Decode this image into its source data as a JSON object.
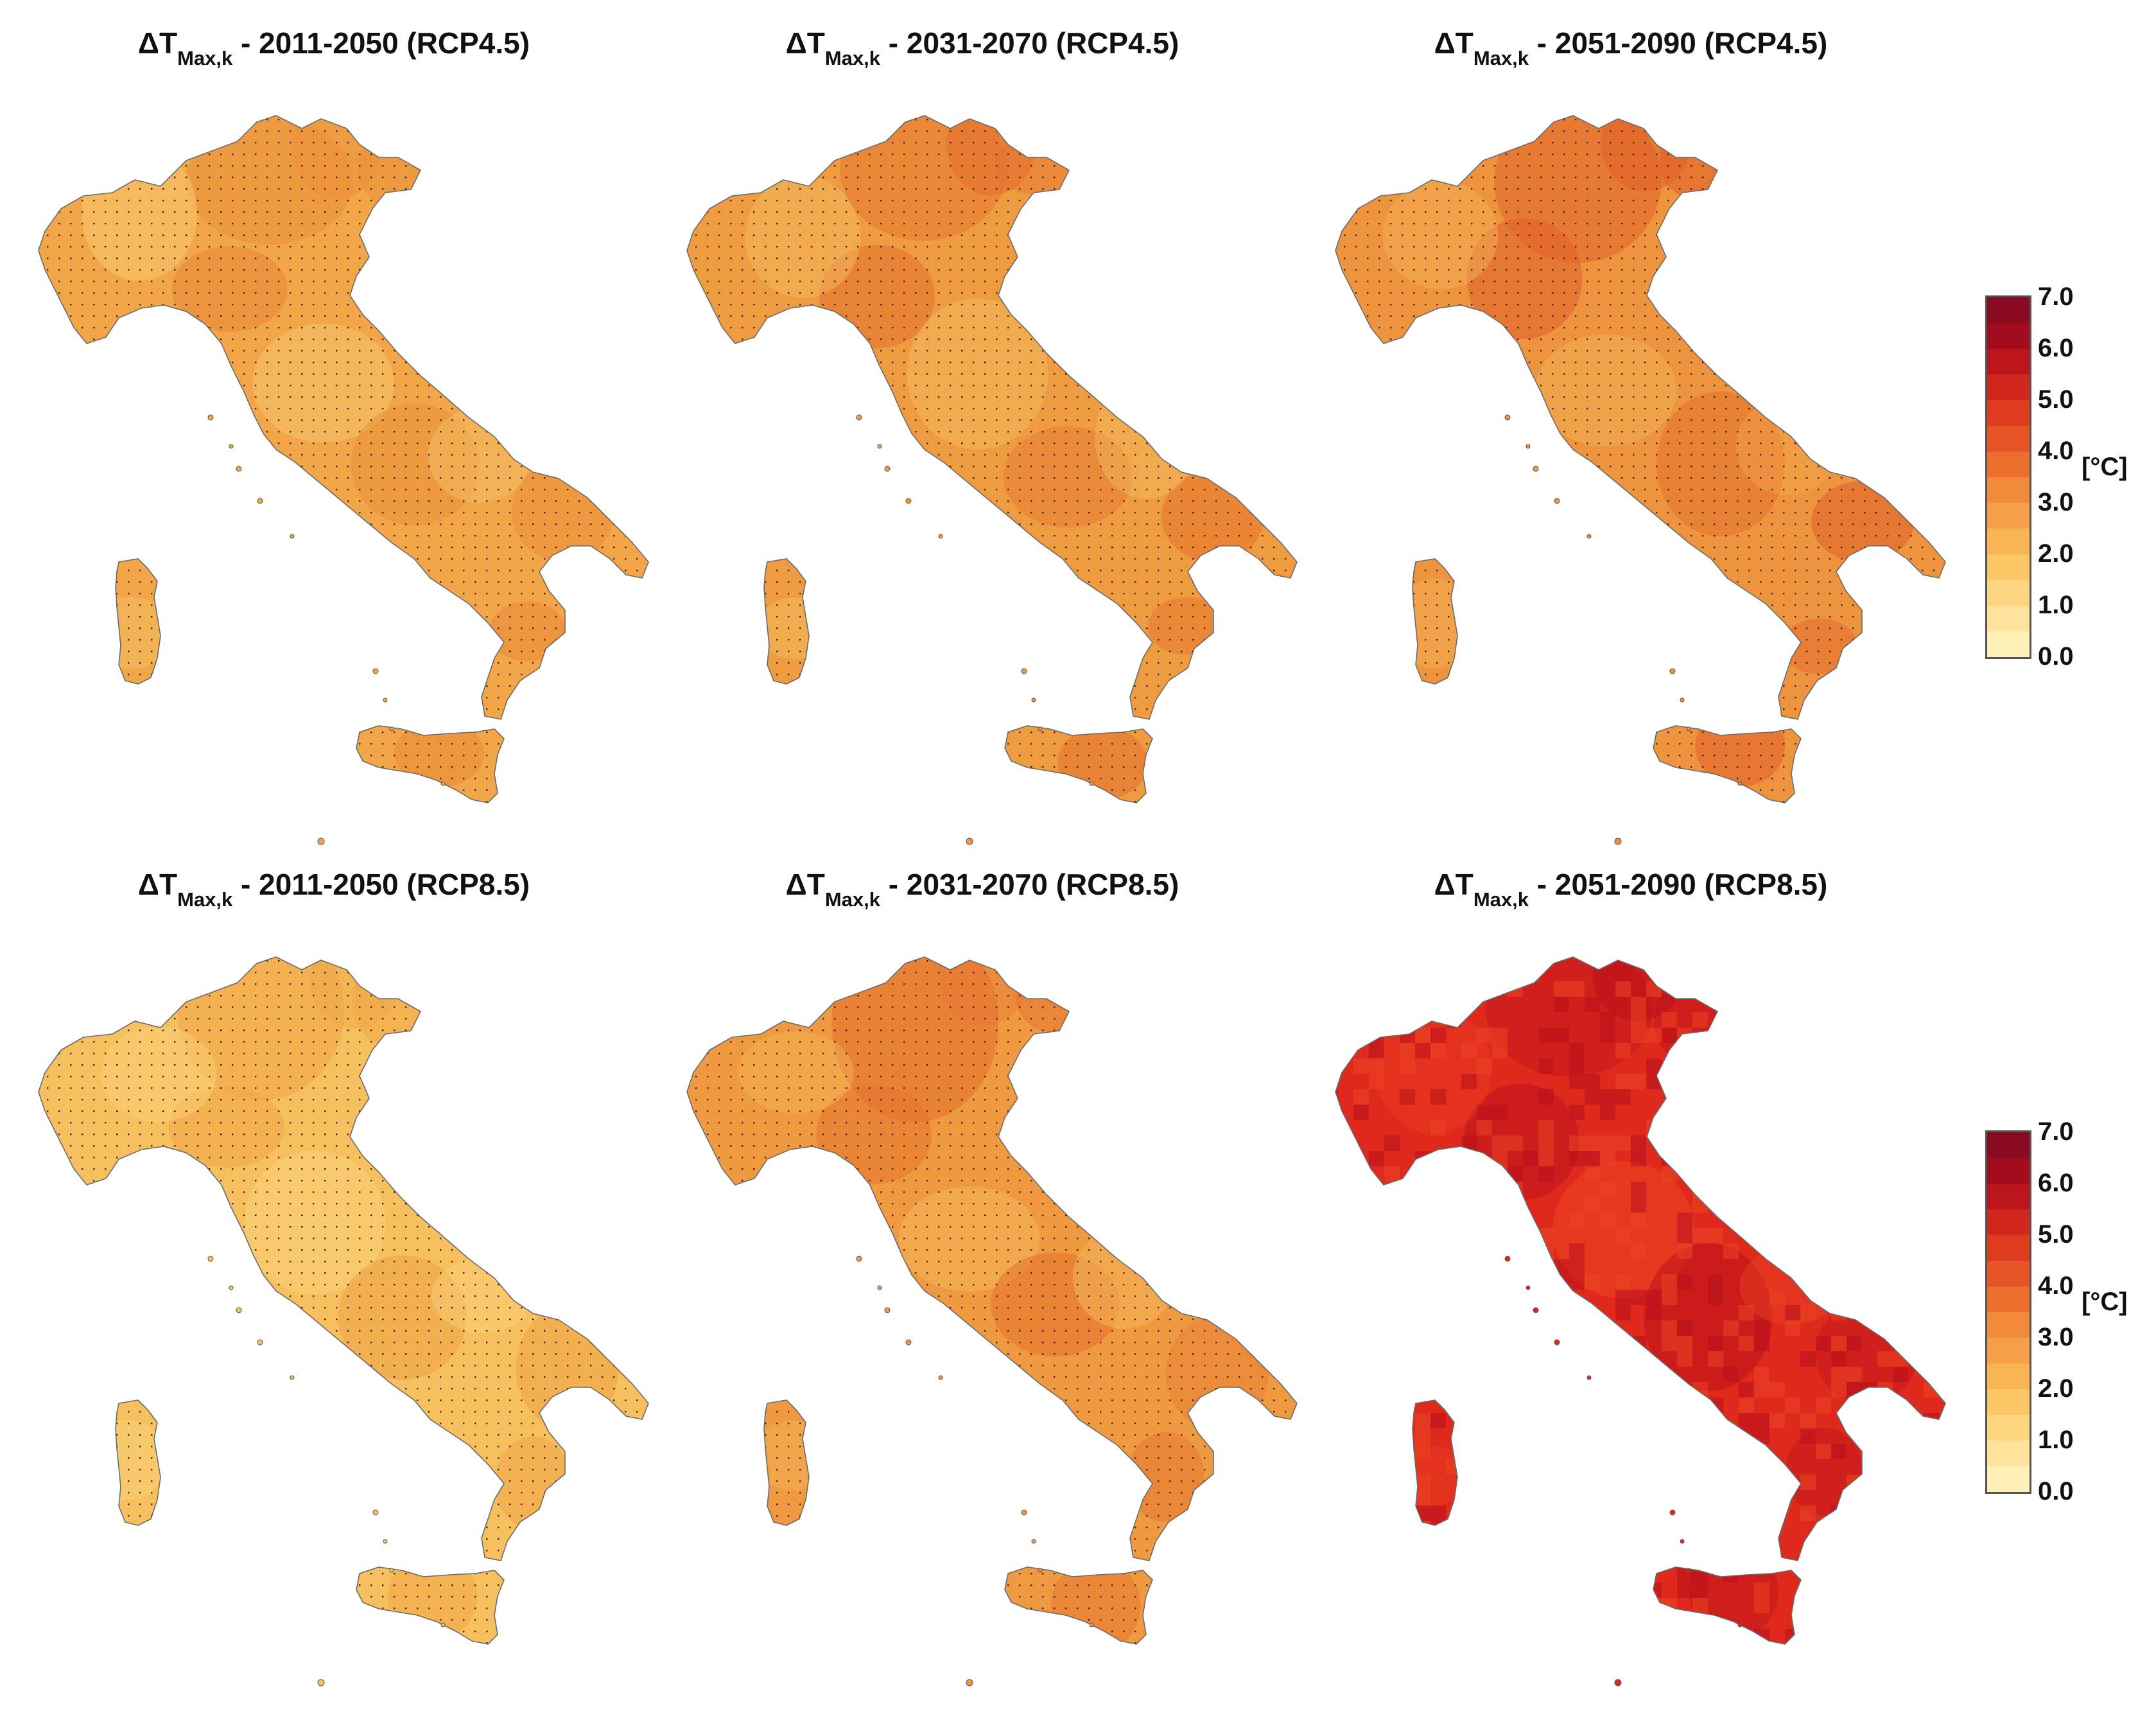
{
  "figure": {
    "panels": [
      {
        "id": "p1",
        "title": {
          "symbol": "ΔT",
          "sub": "Max,k",
          "suffix": " - 2011-2050 (RCP4.5)"
        },
        "fill": "#f2a647",
        "hot": "#ea8a38",
        "light": "#f6c46a",
        "dots": true
      },
      {
        "id": "p2",
        "title": {
          "symbol": "ΔT",
          "sub": "Max,k",
          "suffix": " - 2031-2070 (RCP4.5)"
        },
        "fill": "#ef9c41",
        "hot": "#e4702c",
        "light": "#f4b75a",
        "dots": true
      },
      {
        "id": "p3",
        "title": {
          "symbol": "ΔT",
          "sub": "Max,k",
          "suffix": " - 2051-2090 (RCP4.5)"
        },
        "fill": "#ee943e",
        "hot": "#e05f28",
        "light": "#f3ae52",
        "dots": true
      },
      {
        "id": "p4",
        "title": {
          "symbol": "ΔT",
          "sub": "Max,k",
          "suffix": " - 2011-2050 (RCP8.5)"
        },
        "fill": "#f6c05e",
        "hot": "#f1a446",
        "light": "#fad27a",
        "dots": true
      },
      {
        "id": "p5",
        "title": {
          "symbol": "ΔT",
          "sub": "Max,k",
          "suffix": " - 2031-2070 (RCP8.5)"
        },
        "fill": "#ef9a40",
        "hot": "#e6712d",
        "light": "#f4b65a",
        "dots": true
      },
      {
        "id": "p6",
        "title": {
          "symbol": "ΔT",
          "sub": "Max,k",
          "suffix": " - 2051-2090 (RCP8.5)"
        },
        "fill": "#e0291d",
        "hot": "#b8111b",
        "light": "#eb4422",
        "dots": false
      }
    ],
    "legends": [
      {
        "id": "legend-top",
        "ticks": [
          "7.0",
          "6.0",
          "5.0",
          "4.0",
          "3.0",
          "2.0",
          "1.0",
          "0.0"
        ],
        "unit": "[°C]"
      },
      {
        "id": "legend-bottom",
        "ticks": [
          "7.0",
          "6.0",
          "5.0",
          "4.0",
          "3.0",
          "2.0",
          "1.0",
          "0.0"
        ],
        "unit": "[°C]"
      }
    ],
    "colorscale": [
      "#fff0b8",
      "#fee39a",
      "#fdd57e",
      "#fbc766",
      "#f9b552",
      "#f5a046",
      "#f18a3a",
      "#ec6f2e",
      "#e65426",
      "#de3b1f",
      "#d0261c",
      "#bb151b",
      "#a20c1e",
      "#8a0a1f"
    ],
    "colorscale_range": [
      0.0,
      7.0
    ]
  }
}
